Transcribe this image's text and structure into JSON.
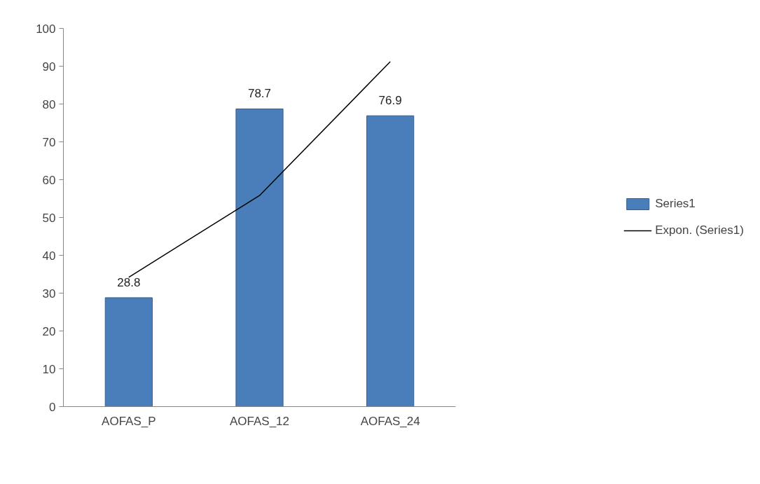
{
  "chart_data": {
    "type": "bar",
    "categories": [
      "AOFAS_P",
      "AOFAS_12",
      "AOFAS_24"
    ],
    "series": [
      {
        "name": "Series1",
        "color": "#4a7ebb",
        "values": [
          28.8,
          78.7,
          76.9
        ],
        "value_labels": [
          "28.8",
          "78.7",
          "76.9"
        ]
      },
      {
        "name": "Expon. (Series1)",
        "type": "line",
        "color": "#000000",
        "values": [
          34.2,
          55.8,
          91.2
        ]
      }
    ],
    "ylim": [
      0,
      100
    ],
    "yticks": [
      0,
      10,
      20,
      30,
      40,
      50,
      60,
      70,
      80,
      90,
      100
    ],
    "grid": false,
    "legend": "right",
    "line_style": "solid"
  }
}
